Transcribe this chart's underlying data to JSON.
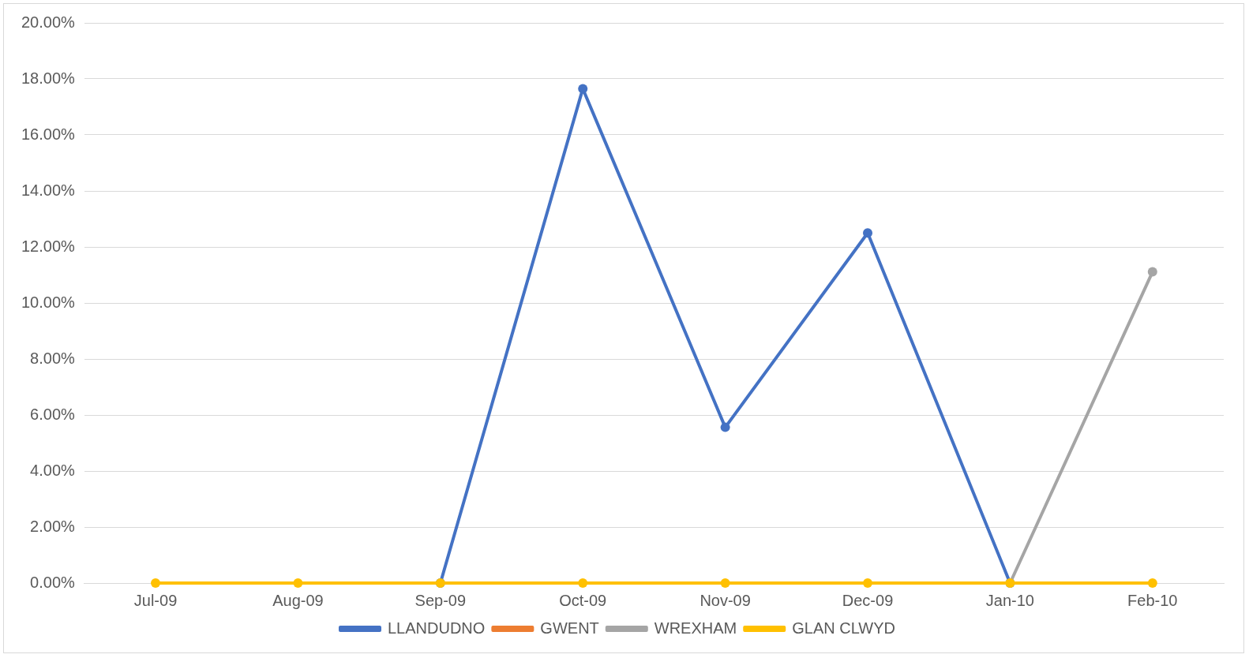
{
  "chart_data": {
    "type": "line",
    "categories": [
      "Jul-09",
      "Aug-09",
      "Sep-09",
      "Oct-09",
      "Nov-09",
      "Dec-09",
      "Jan-10",
      "Feb-10"
    ],
    "series": [
      {
        "name": "LLANDUDNO",
        "color": "#4472c4",
        "values": [
          null,
          null,
          0,
          17.65,
          5.56,
          12.5,
          0,
          null
        ]
      },
      {
        "name": "GWENT",
        "color": "#ed7d31",
        "values": [
          null,
          null,
          null,
          null,
          null,
          null,
          null,
          null
        ]
      },
      {
        "name": "WREXHAM",
        "color": "#a5a5a5",
        "values": [
          null,
          null,
          null,
          null,
          null,
          null,
          0,
          11.11
        ]
      },
      {
        "name": "GLAN CLWYD",
        "color": "#ffc000",
        "values": [
          0,
          0,
          0,
          0,
          0,
          0,
          0,
          0
        ]
      }
    ],
    "ylim": [
      0,
      20
    ],
    "yticks": [
      {
        "value": 0,
        "label": "0.00%"
      },
      {
        "value": 2,
        "label": "2.00%"
      },
      {
        "value": 4,
        "label": "4.00%"
      },
      {
        "value": 6,
        "label": "6.00%"
      },
      {
        "value": 8,
        "label": "8.00%"
      },
      {
        "value": 10,
        "label": "10.00%"
      },
      {
        "value": 12,
        "label": "12.00%"
      },
      {
        "value": 14,
        "label": "14.00%"
      },
      {
        "value": 16,
        "label": "16.00%"
      },
      {
        "value": 18,
        "label": "18.00%"
      },
      {
        "value": 20,
        "label": "20.00%"
      }
    ],
    "grid": "y",
    "legend": "bottom",
    "marker": "circle",
    "line_style": "solid"
  }
}
